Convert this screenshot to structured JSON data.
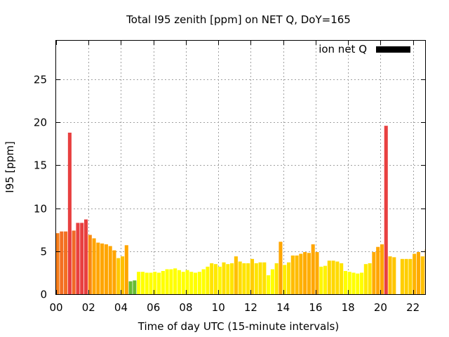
{
  "chart_data": {
    "type": "bar",
    "title": "Total I95 zenith [ppm] on NET Q, DoY=165",
    "xlabel": "Time of day UTC (15-minute intervals)",
    "ylabel": "I95 [ppm]",
    "xlim": [
      0,
      22.75
    ],
    "ylim": [
      0,
      29.5
    ],
    "x_ticks": [
      "00",
      "02",
      "04",
      "06",
      "08",
      "10",
      "12",
      "14",
      "16",
      "18",
      "20",
      "22"
    ],
    "x_tick_values": [
      0,
      2,
      4,
      6,
      8,
      10,
      12,
      14,
      16,
      18,
      20,
      22
    ],
    "y_ticks": [
      0,
      5,
      10,
      15,
      20,
      25
    ],
    "grid": true,
    "legend": {
      "label": "ion net Q",
      "position": "top-right",
      "color": "#000000"
    },
    "color_scale": {
      "low": "#ffff00",
      "mid": "#ffa500",
      "high": "#e84040",
      "min_marker": "#66bb33"
    },
    "series": [
      {
        "name": "ion net Q",
        "interval_hours": 0.25,
        "x": [
          0.0,
          0.25,
          0.5,
          0.75,
          1.0,
          1.25,
          1.5,
          1.75,
          2.0,
          2.25,
          2.5,
          2.75,
          3.0,
          3.25,
          3.5,
          3.75,
          4.0,
          4.25,
          4.5,
          4.75,
          5.0,
          5.25,
          5.5,
          5.75,
          6.0,
          6.25,
          6.5,
          6.75,
          7.0,
          7.25,
          7.5,
          7.75,
          8.0,
          8.25,
          8.5,
          8.75,
          9.0,
          9.25,
          9.5,
          9.75,
          10.0,
          10.25,
          10.5,
          10.75,
          11.0,
          11.25,
          11.5,
          11.75,
          12.0,
          12.25,
          12.5,
          12.75,
          13.0,
          13.25,
          13.5,
          13.75,
          14.0,
          14.25,
          14.5,
          14.75,
          15.0,
          15.25,
          15.5,
          15.75,
          16.0,
          16.25,
          16.5,
          16.75,
          17.0,
          17.25,
          17.5,
          17.75,
          18.0,
          18.25,
          18.5,
          18.75,
          19.0,
          19.25,
          19.5,
          19.75,
          20.0,
          20.25,
          20.5,
          20.75,
          21.0,
          21.25,
          21.5,
          21.75,
          22.0,
          22.25,
          22.5,
          22.75
        ],
        "values": [
          7.1,
          7.3,
          7.3,
          18.8,
          7.4,
          8.3,
          8.3,
          8.7,
          6.9,
          6.5,
          6.0,
          5.9,
          5.8,
          5.6,
          5.1,
          4.2,
          4.4,
          5.7,
          1.5,
          1.6,
          2.6,
          2.6,
          2.5,
          2.5,
          2.6,
          2.5,
          2.7,
          2.9,
          2.9,
          3.0,
          2.8,
          2.6,
          2.8,
          2.6,
          2.5,
          2.6,
          2.9,
          3.2,
          3.6,
          3.5,
          3.2,
          3.7,
          3.5,
          3.6,
          4.4,
          3.8,
          3.6,
          3.6,
          4.1,
          3.6,
          3.7,
          3.7,
          2.2,
          2.9,
          3.6,
          6.1,
          3.4,
          3.7,
          4.5,
          4.5,
          4.7,
          4.9,
          4.8,
          5.8,
          4.9,
          3.2,
          3.3,
          3.9,
          3.9,
          3.8,
          3.6,
          2.7,
          2.6,
          2.5,
          2.4,
          2.5,
          3.5,
          3.6,
          4.9,
          5.5,
          5.8,
          19.6,
          4.4,
          4.3,
          null,
          4.1,
          4.1,
          4.1,
          4.7,
          4.9,
          4.4,
          5.2
        ]
      }
    ]
  }
}
